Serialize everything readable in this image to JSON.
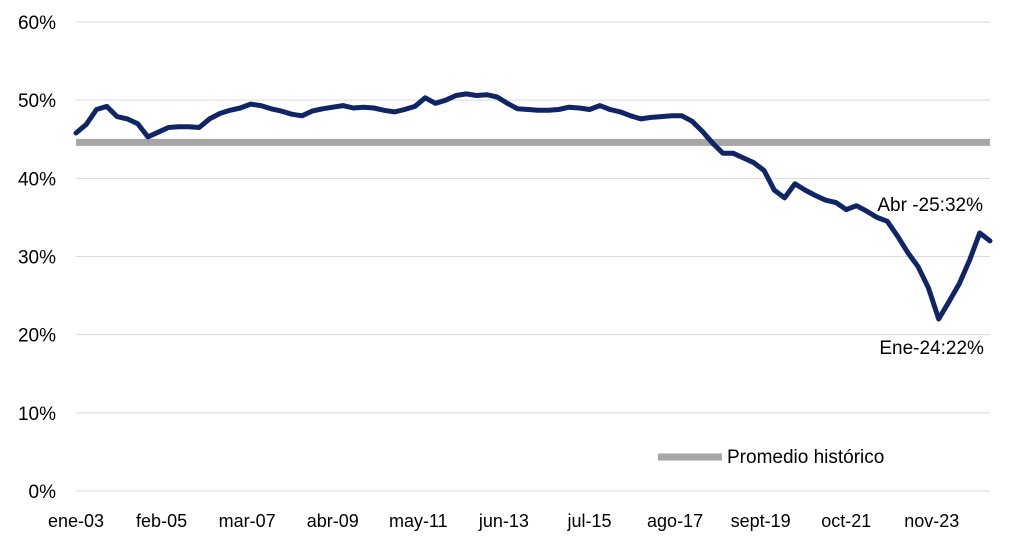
{
  "colors": {
    "series": "#0f2566",
    "average": "#a6a6a6",
    "grid": "#d9d9d9",
    "background": "#ffffff"
  },
  "chart_data": {
    "type": "line",
    "title": "",
    "xlabel": "",
    "ylabel": "",
    "ylim": [
      0,
      60
    ],
    "y_ticks": [
      0,
      10,
      20,
      30,
      40,
      50,
      60
    ],
    "y_tick_labels": [
      "0%",
      "10%",
      "20%",
      "30%",
      "40%",
      "50%",
      "60%"
    ],
    "x_range": [
      "2003-01",
      "2025-04"
    ],
    "x_ticks": [
      "2003-01",
      "2005-02",
      "2007-03",
      "2009-04",
      "2011-05",
      "2013-06",
      "2015-07",
      "2017-08",
      "2019-09",
      "2021-10",
      "2023-11"
    ],
    "x_tick_labels": [
      "ene-03",
      "feb-05",
      "mar-07",
      "abr-09",
      "may-11",
      "jun-13",
      "jul-15",
      "ago-17",
      "sept-19",
      "oct-21",
      "nov-23"
    ],
    "grid": true,
    "legend_position": "bottom-right",
    "average_line": {
      "label": "Promedio histórico",
      "value": 44.6
    },
    "series": [
      {
        "values": [
          [
            "2003-01",
            45.8
          ],
          [
            "2003-04",
            46.9
          ],
          [
            "2003-07",
            48.8
          ],
          [
            "2003-10",
            49.2
          ],
          [
            "2004-01",
            47.9
          ],
          [
            "2004-04",
            47.6
          ],
          [
            "2004-07",
            47.0
          ],
          [
            "2004-10",
            45.3
          ],
          [
            "2005-01",
            45.9
          ],
          [
            "2005-04",
            46.5
          ],
          [
            "2005-07",
            46.6
          ],
          [
            "2005-10",
            46.6
          ],
          [
            "2006-01",
            46.5
          ],
          [
            "2006-04",
            47.6
          ],
          [
            "2006-07",
            48.3
          ],
          [
            "2006-10",
            48.7
          ],
          [
            "2007-01",
            49.0
          ],
          [
            "2007-04",
            49.5
          ],
          [
            "2007-07",
            49.3
          ],
          [
            "2007-10",
            48.9
          ],
          [
            "2008-01",
            48.6
          ],
          [
            "2008-04",
            48.2
          ],
          [
            "2008-07",
            48.0
          ],
          [
            "2008-10",
            48.6
          ],
          [
            "2009-01",
            48.9
          ],
          [
            "2009-04",
            49.1
          ],
          [
            "2009-07",
            49.3
          ],
          [
            "2009-10",
            49.0
          ],
          [
            "2010-01",
            49.1
          ],
          [
            "2010-04",
            49.0
          ],
          [
            "2010-07",
            48.7
          ],
          [
            "2010-10",
            48.5
          ],
          [
            "2011-01",
            48.8
          ],
          [
            "2011-04",
            49.2
          ],
          [
            "2011-07",
            50.3
          ],
          [
            "2011-10",
            49.6
          ],
          [
            "2012-01",
            50.0
          ],
          [
            "2012-04",
            50.6
          ],
          [
            "2012-07",
            50.8
          ],
          [
            "2012-10",
            50.6
          ],
          [
            "2013-01",
            50.7
          ],
          [
            "2013-04",
            50.4
          ],
          [
            "2013-07",
            49.6
          ],
          [
            "2013-10",
            48.9
          ],
          [
            "2014-01",
            48.8
          ],
          [
            "2014-04",
            48.7
          ],
          [
            "2014-07",
            48.7
          ],
          [
            "2014-10",
            48.8
          ],
          [
            "2015-01",
            49.1
          ],
          [
            "2015-04",
            49.0
          ],
          [
            "2015-07",
            48.8
          ],
          [
            "2015-10",
            49.3
          ],
          [
            "2016-01",
            48.8
          ],
          [
            "2016-04",
            48.5
          ],
          [
            "2016-07",
            48.0
          ],
          [
            "2016-10",
            47.6
          ],
          [
            "2017-01",
            47.8
          ],
          [
            "2017-04",
            47.9
          ],
          [
            "2017-07",
            48.0
          ],
          [
            "2017-10",
            48.0
          ],
          [
            "2018-01",
            47.3
          ],
          [
            "2018-04",
            46.0
          ],
          [
            "2018-07",
            44.5
          ],
          [
            "2018-10",
            43.2
          ],
          [
            "2019-01",
            43.2
          ],
          [
            "2019-04",
            42.6
          ],
          [
            "2019-07",
            42.0
          ],
          [
            "2019-10",
            41.0
          ],
          [
            "2020-01",
            38.5
          ],
          [
            "2020-04",
            37.5
          ],
          [
            "2020-07",
            39.3
          ],
          [
            "2020-10",
            38.5
          ],
          [
            "2021-01",
            37.8
          ],
          [
            "2021-04",
            37.2
          ],
          [
            "2021-07",
            36.9
          ],
          [
            "2021-10",
            36.0
          ],
          [
            "2022-01",
            36.5
          ],
          [
            "2022-04",
            35.8
          ],
          [
            "2022-07",
            35.0
          ],
          [
            "2022-10",
            34.5
          ],
          [
            "2023-01",
            32.6
          ],
          [
            "2023-04",
            30.5
          ],
          [
            "2023-07",
            28.7
          ],
          [
            "2023-10",
            26.0
          ],
          [
            "2024-01",
            22.0
          ],
          [
            "2024-04",
            24.2
          ],
          [
            "2024-07",
            26.5
          ],
          [
            "2024-10",
            29.5
          ],
          [
            "2025-01",
            33.0
          ],
          [
            "2025-04",
            32.0
          ]
        ]
      }
    ],
    "annotations": [
      {
        "text": "Abr -25:32%",
        "x": "2025-04",
        "y": 32
      },
      {
        "text": "Ene-24:22%",
        "x": "2024-01",
        "y": 22
      }
    ]
  }
}
